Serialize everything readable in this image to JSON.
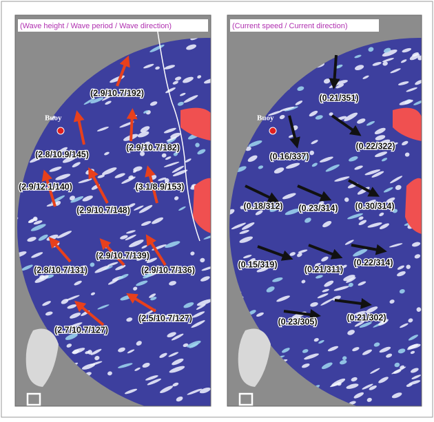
{
  "panels": [
    {
      "title": "(Wave height / Wave period / Wave direction)",
      "buoy": "Buoy",
      "labels": [
        "(2.9/10.7/192)",
        "(2.8/10.9/145)",
        "(2.9/10.7/182)",
        "(2.9/12.1/140)",
        "(3.1/8.9/153)",
        "(2.9/10.7/148)",
        "(2.9/10.7/139)",
        "(2.8/10.7/131)",
        "(2.9/10.7/136)",
        "(2.7/10.7/127)",
        "(2.5/10.7/127)"
      ]
    },
    {
      "title": "(Current speed / Current direction)",
      "buoy": "Buoy",
      "labels": [
        "(0.21/351)",
        "(0.22/322)",
        "(0.16/337)",
        "(0.18/312)",
        "(0.23/314)",
        "(0.30/314)",
        "(0.15/319)",
        "(0.21/311)",
        "(0.22/314)",
        "(0.23/305)",
        "(0.21/302)"
      ]
    }
  ]
}
